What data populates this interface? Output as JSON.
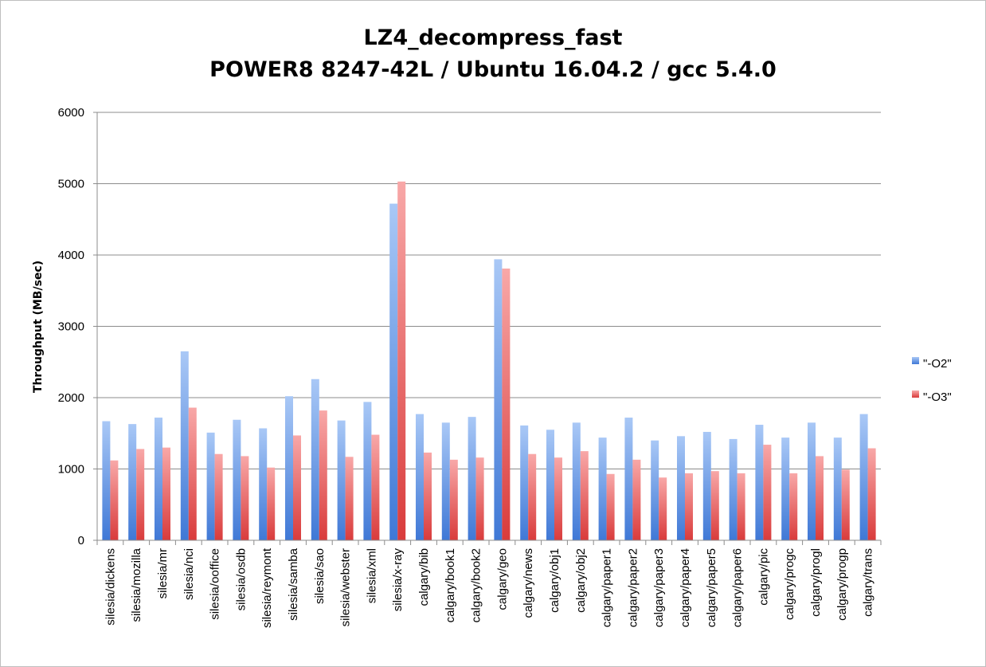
{
  "chart_data": {
    "type": "bar",
    "title": "LZ4_decompress_fast",
    "subtitle": "POWER8 8247-42L / Ubuntu 16.04.2 / gcc 5.4.0",
    "xlabel": "",
    "ylabel": "Throughput (MB/sec)",
    "ylim": [
      0,
      6000
    ],
    "yticks": [
      0,
      1000,
      2000,
      3000,
      4000,
      5000,
      6000
    ],
    "grid": true,
    "legend_position": "right",
    "categories": [
      "silesia/dickens",
      "silesia/mozilla",
      "silesia/mr",
      "silesia/nci",
      "silesia/ooffice",
      "silesia/osdb",
      "silesia/reymont",
      "silesia/samba",
      "silesia/sao",
      "silesia/webster",
      "silesia/xml",
      "silesia/x-ray",
      "calgary/bib",
      "calgary/book1",
      "calgary/book2",
      "calgary/geo",
      "calgary/news",
      "calgary/obj1",
      "calgary/obj2",
      "calgary/paper1",
      "calgary/paper2",
      "calgary/paper3",
      "calgary/paper4",
      "calgary/paper5",
      "calgary/paper6",
      "calgary/pic",
      "calgary/progc",
      "calgary/progl",
      "calgary/progp",
      "calgary/trans"
    ],
    "series": [
      {
        "name": "\"-O2\"",
        "color": "#5b8fe0",
        "values": [
          1670,
          1630,
          1720,
          2650,
          1510,
          1690,
          1570,
          2020,
          2260,
          1680,
          1940,
          4720,
          1770,
          1650,
          1730,
          3940,
          1610,
          1550,
          1650,
          1440,
          1720,
          1400,
          1460,
          1520,
          1420,
          1620,
          1440,
          1650,
          1440,
          1770
        ]
      },
      {
        "name": "\"-O3\"",
        "color": "#e85a5a",
        "values": [
          1120,
          1280,
          1300,
          1860,
          1210,
          1180,
          1020,
          1470,
          1820,
          1170,
          1480,
          5030,
          1230,
          1130,
          1160,
          3810,
          1210,
          1160,
          1250,
          930,
          1130,
          880,
          940,
          970,
          940,
          1340,
          940,
          1180,
          990,
          1290
        ]
      }
    ]
  }
}
